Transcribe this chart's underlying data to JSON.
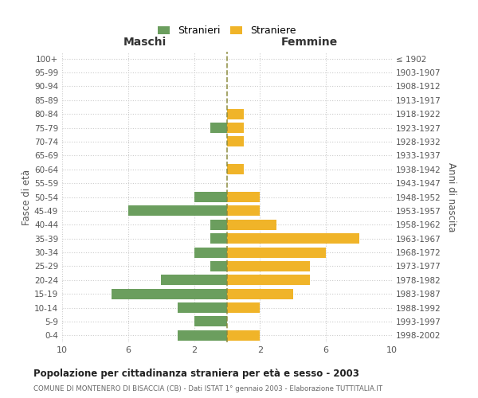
{
  "age_groups": [
    "100+",
    "95-99",
    "90-94",
    "85-89",
    "80-84",
    "75-79",
    "70-74",
    "65-69",
    "60-64",
    "55-59",
    "50-54",
    "45-49",
    "40-44",
    "35-39",
    "30-34",
    "25-29",
    "20-24",
    "15-19",
    "10-14",
    "5-9",
    "0-4"
  ],
  "birth_years": [
    "≤ 1902",
    "1903-1907",
    "1908-1912",
    "1913-1917",
    "1918-1922",
    "1923-1927",
    "1928-1932",
    "1933-1937",
    "1938-1942",
    "1943-1947",
    "1948-1952",
    "1953-1957",
    "1958-1962",
    "1963-1967",
    "1968-1972",
    "1973-1977",
    "1978-1982",
    "1983-1987",
    "1988-1992",
    "1993-1997",
    "1998-2002"
  ],
  "maschi": [
    0,
    0,
    0,
    0,
    0,
    1,
    0,
    0,
    0,
    0,
    2,
    6,
    1,
    1,
    2,
    1,
    4,
    7,
    3,
    2,
    3
  ],
  "femmine": [
    0,
    0,
    0,
    0,
    1,
    1,
    1,
    0,
    1,
    0,
    2,
    2,
    3,
    8,
    6,
    5,
    5,
    4,
    2,
    0,
    2
  ],
  "color_maschi": "#6b9e5e",
  "color_femmine": "#f0b429",
  "background_color": "#ffffff",
  "grid_color": "#cccccc",
  "dashed_line_color": "#8a8a3c",
  "title": "Popolazione per cittadinanza straniera per età e sesso - 2003",
  "subtitle": "COMUNE DI MONTENERO DI BISACCIA (CB) - Dati ISTAT 1° gennaio 2003 - Elaborazione TUTTITALIA.IT",
  "xlabel_left": "Maschi",
  "xlabel_right": "Femmine",
  "ylabel_left": "Fasce di età",
  "ylabel_right": "Anni di nascita",
  "xlim": 10,
  "legend_stranieri": "Stranieri",
  "legend_straniere": "Straniere"
}
